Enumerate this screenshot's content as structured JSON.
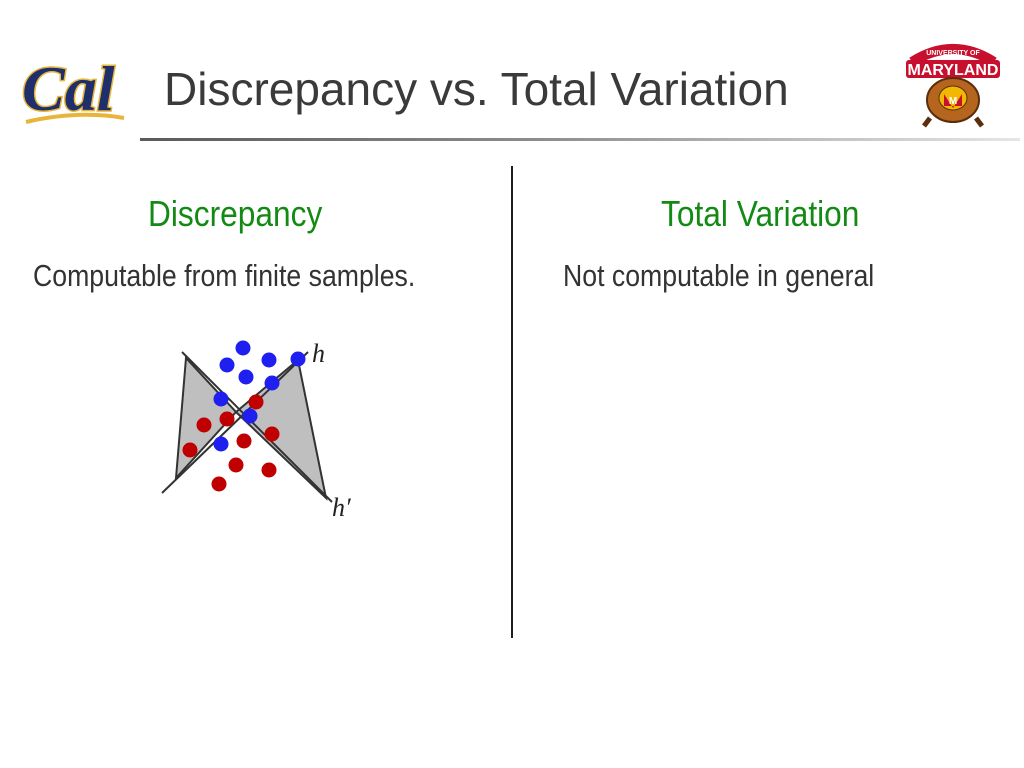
{
  "slide": {
    "title": "Discrepancy vs. Total Variation",
    "logos": {
      "left": {
        "text": "Cal",
        "name": "cal-logo",
        "colors": {
          "blue": "#1f2f6b",
          "gold": "#e8b53a"
        }
      },
      "right": {
        "text_top": "UNIVERSITY OF",
        "text_main": "MARYLAND",
        "badge": "M",
        "name": "maryland-terrapin-logo",
        "colors": {
          "red": "#c8102e",
          "gold": "#f2b700"
        }
      }
    }
  },
  "columns": {
    "left": {
      "heading": "Discrepancy",
      "text": "Computable from finite samples."
    },
    "right": {
      "heading": "Total Variation",
      "text": "Not computable in general"
    }
  },
  "diagram": {
    "labels": {
      "h": "h",
      "h_prime": "h′"
    },
    "colors": {
      "blue": "#1f1ff0",
      "red": "#c00000",
      "region": "#bfbfbf",
      "line": "#333333"
    }
  }
}
